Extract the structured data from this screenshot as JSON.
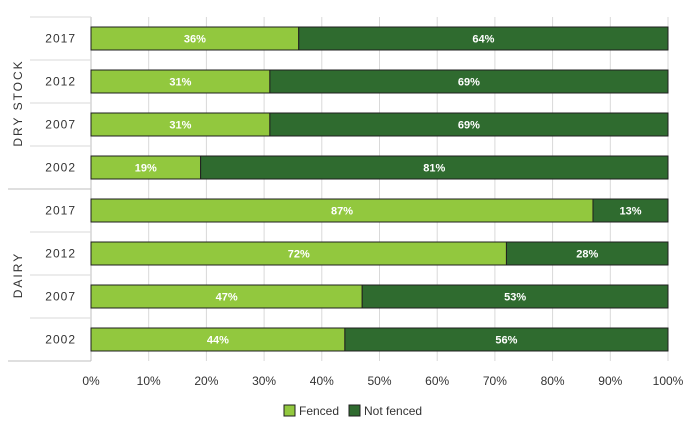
{
  "chart_data": {
    "type": "bar",
    "orientation": "horizontal",
    "stacked": true,
    "groups": [
      {
        "name": "DRY STOCK",
        "categories": [
          "2017",
          "2012",
          "2007",
          "2002"
        ]
      },
      {
        "name": "DAIRY",
        "categories": [
          "2017",
          "2012",
          "2007",
          "2002"
        ]
      }
    ],
    "categories": [
      "2017",
      "2012",
      "2007",
      "2002",
      "2017",
      "2012",
      "2007",
      "2002"
    ],
    "series": [
      {
        "name": "Fenced",
        "color": "#92c83e",
        "values": [
          36,
          31,
          31,
          19,
          87,
          72,
          47,
          44
        ],
        "labels": [
          "36%",
          "31%",
          "31%",
          "19%",
          "87%",
          "72%",
          "47%",
          "44%"
        ]
      },
      {
        "name": "Not fenced",
        "color": "#2f6b2f",
        "values": [
          64,
          69,
          69,
          81,
          13,
          28,
          53,
          56
        ],
        "labels": [
          "64%",
          "69%",
          "69%",
          "81%",
          "13%",
          "28%",
          "53%",
          "56%"
        ]
      }
    ],
    "xlim": [
      0,
      100
    ],
    "xticks": [
      "0%",
      "10%",
      "20%",
      "30%",
      "40%",
      "50%",
      "60%",
      "70%",
      "80%",
      "90%",
      "100%"
    ],
    "grid": true,
    "legend_position": "bottom-center"
  }
}
